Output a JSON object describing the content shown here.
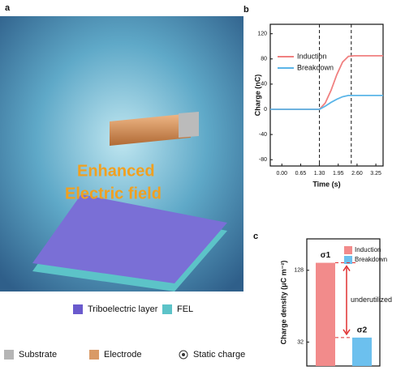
{
  "panel_a": {
    "label": "a",
    "headline": [
      "Enhanced",
      "Electric field"
    ],
    "legend": [
      {
        "name": "Triboelectric layer",
        "color": "#6a5acd"
      },
      {
        "name": "FEL",
        "color": "#5cc3c8"
      },
      {
        "name": "Substrate",
        "color": "#b5b5b5"
      },
      {
        "name": "Electrode",
        "color": "#d99a66"
      },
      {
        "name": "Static charge",
        "color": "#333333"
      }
    ]
  },
  "chart_data": [
    {
      "type": "line",
      "label": "b",
      "xlabel": "Time (s)",
      "ylabel": "Charge (nC)",
      "x": [
        -0.4,
        0,
        0.5,
        1.0,
        1.3,
        1.5,
        1.7,
        1.9,
        2.1,
        2.3,
        2.5,
        3.0,
        3.5
      ],
      "series": [
        {
          "name": "Induction",
          "color": "#f08080",
          "values": [
            0,
            0,
            0,
            0,
            0,
            10,
            30,
            55,
            75,
            84,
            85,
            85,
            85
          ]
        },
        {
          "name": "Breakdown",
          "color": "#5bb5e8",
          "values": [
            0,
            0,
            0,
            0,
            0,
            5,
            11,
            16,
            20,
            22,
            22,
            22,
            22
          ]
        }
      ],
      "xlim": [
        -0.4,
        3.5
      ],
      "ylim": [
        -90,
        135
      ],
      "xticks": [
        {
          "value": 0,
          "label": "0.00"
        },
        {
          "value": 0.65,
          "label": "0.65"
        },
        {
          "value": 1.3,
          "label": "1.30"
        },
        {
          "value": 1.95,
          "label": "1.95"
        },
        {
          "value": 2.6,
          "label": "2.60"
        },
        {
          "value": 3.25,
          "label": "3.25"
        }
      ],
      "yticks": [
        -80,
        -40,
        0,
        40,
        80,
        120
      ],
      "vlines": [
        1.3,
        2.4
      ]
    },
    {
      "type": "bar",
      "label": "c",
      "ylabel": "Charge density (μC m⁻²)",
      "series": [
        {
          "name": "Induction",
          "color": "#f28b8b",
          "values": [
            138
          ],
          "annotation": "σ1"
        },
        {
          "name": "Breakdown",
          "color": "#6cc0ee",
          "values": [
            38
          ],
          "annotation": "σ2"
        }
      ],
      "ylim": [
        0,
        170
      ],
      "yticks": [
        32,
        128
      ],
      "annotation": "underutilized"
    }
  ]
}
